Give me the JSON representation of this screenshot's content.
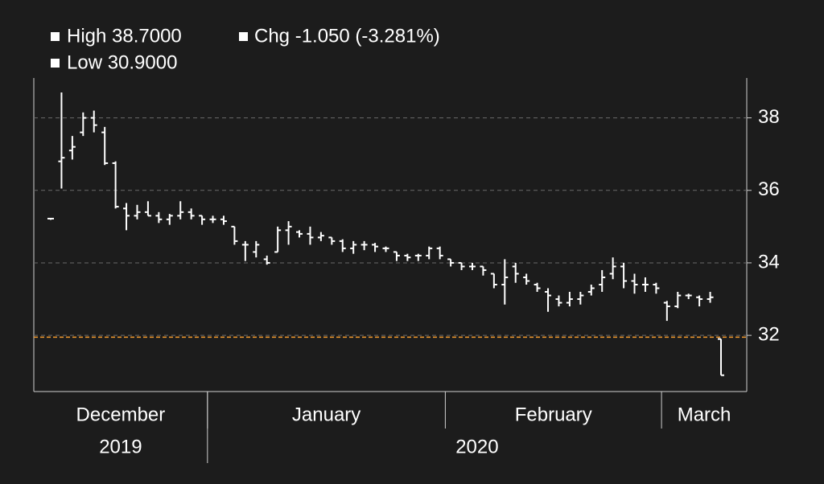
{
  "chart_data": {
    "type": "ohlc",
    "legend": [
      "High 38.7000",
      "Chg -1.050 (-3.281%)",
      "Low 30.9000"
    ],
    "months": [
      "December",
      "December",
      "December",
      "December",
      "December",
      "December",
      "December",
      "December",
      "December",
      "December",
      "December",
      "December",
      "December",
      "December",
      "December",
      "January",
      "January",
      "January",
      "January",
      "January",
      "January",
      "January",
      "January",
      "January",
      "January",
      "January",
      "January",
      "January",
      "January",
      "January",
      "January",
      "January",
      "January",
      "January",
      "January",
      "January",
      "January",
      "February",
      "February",
      "February",
      "February",
      "February",
      "February",
      "February",
      "February",
      "February",
      "February",
      "February",
      "February",
      "February",
      "February",
      "February",
      "February",
      "February",
      "February",
      "February",
      "February",
      "March",
      "March",
      "March",
      "March",
      "March",
      "March"
    ],
    "years": [
      "2019",
      "2019",
      "2019",
      "2019",
      "2019",
      "2019",
      "2019",
      "2019",
      "2019",
      "2019",
      "2019",
      "2019",
      "2019",
      "2019",
      "2019",
      "2020",
      "2020",
      "2020",
      "2020",
      "2020",
      "2020",
      "2020",
      "2020",
      "2020",
      "2020",
      "2020",
      "2020",
      "2020",
      "2020",
      "2020",
      "2020",
      "2020",
      "2020",
      "2020",
      "2020",
      "2020",
      "2020",
      "2020",
      "2020",
      "2020",
      "2020",
      "2020",
      "2020",
      "2020",
      "2020",
      "2020",
      "2020",
      "2020",
      "2020",
      "2020",
      "2020",
      "2020",
      "2020",
      "2020",
      "2020",
      "2020",
      "2020",
      "2020",
      "2020",
      "2020",
      "2020",
      "2020",
      "2020"
    ],
    "open": [
      35.22,
      36.8,
      37.1,
      37.6,
      38.0,
      37.6,
      36.75,
      35.5,
      35.3,
      35.4,
      35.3,
      35.2,
      35.3,
      35.4,
      35.3,
      35.2,
      35.2,
      35.0,
      34.5,
      34.3,
      34.1,
      34.3,
      34.9,
      34.85,
      34.8,
      34.7,
      34.7,
      34.6,
      34.4,
      34.5,
      34.5,
      34.4,
      34.3,
      34.2,
      34.2,
      34.2,
      34.4,
      34.1,
      34.0,
      33.9,
      33.9,
      33.7,
      33.4,
      33.9,
      33.6,
      33.4,
      33.2,
      33.0,
      32.9,
      33.0,
      33.2,
      33.4,
      33.7,
      33.9,
      33.5,
      33.4,
      33.4,
      32.9,
      32.8,
      33.1,
      33.05,
      33.0,
      31.9
    ],
    "high": [
      35.22,
      38.7,
      37.5,
      38.15,
      38.2,
      37.75,
      36.8,
      35.65,
      35.6,
      35.7,
      35.4,
      35.35,
      35.7,
      35.5,
      35.3,
      35.3,
      35.3,
      35.0,
      34.6,
      34.6,
      34.2,
      35.0,
      35.15,
      34.9,
      35.0,
      34.85,
      34.7,
      34.65,
      34.6,
      34.6,
      34.55,
      34.45,
      34.3,
      34.25,
      34.25,
      34.45,
      34.45,
      34.1,
      34.0,
      34.0,
      33.9,
      33.7,
      34.1,
      34.0,
      33.7,
      33.45,
      33.3,
      33.1,
      33.2,
      33.2,
      33.4,
      33.8,
      34.15,
      34.0,
      33.7,
      33.6,
      33.45,
      32.95,
      33.2,
      33.15,
      33.1,
      33.2,
      31.9
    ],
    "low": [
      35.22,
      36.05,
      36.85,
      37.5,
      37.6,
      36.7,
      35.5,
      34.9,
      35.2,
      35.3,
      35.1,
      35.05,
      35.2,
      35.2,
      35.05,
      35.1,
      35.05,
      34.5,
      34.05,
      34.15,
      33.95,
      34.3,
      34.5,
      34.7,
      34.5,
      34.6,
      34.5,
      34.3,
      34.25,
      34.35,
      34.3,
      34.3,
      34.05,
      34.05,
      34.05,
      34.1,
      34.1,
      33.9,
      33.8,
      33.8,
      33.65,
      33.3,
      32.85,
      33.45,
      33.4,
      33.2,
      32.65,
      32.8,
      32.8,
      32.85,
      33.1,
      33.2,
      33.55,
      33.3,
      33.15,
      33.2,
      33.15,
      32.4,
      32.75,
      33.0,
      32.8,
      32.9,
      30.9
    ],
    "close": [
      35.22,
      36.9,
      37.2,
      38.0,
      37.8,
      36.75,
      35.55,
      35.3,
      35.4,
      35.3,
      35.2,
      35.3,
      35.4,
      35.3,
      35.2,
      35.2,
      35.15,
      34.6,
      34.5,
      34.5,
      34.0,
      34.9,
      35.0,
      34.8,
      34.7,
      34.75,
      34.6,
      34.4,
      34.5,
      34.5,
      34.45,
      34.4,
      34.2,
      34.15,
      34.2,
      34.4,
      34.2,
      34.0,
      33.9,
      33.9,
      33.8,
      33.4,
      33.6,
      33.7,
      33.5,
      33.3,
      33.1,
      32.9,
      33.0,
      33.1,
      33.3,
      33.6,
      33.9,
      33.5,
      33.4,
      33.4,
      33.3,
      32.8,
      33.1,
      33.1,
      33.0,
      33.05,
      30.9
    ],
    "color": "#ffffff",
    "reference_line": {
      "value": 31.95,
      "color": "#f39a2e"
    },
    "ylim": [
      30.45,
      39.1
    ],
    "yticks": [
      32,
      34,
      36,
      38
    ],
    "grid": true,
    "y_axis_side": "right"
  }
}
